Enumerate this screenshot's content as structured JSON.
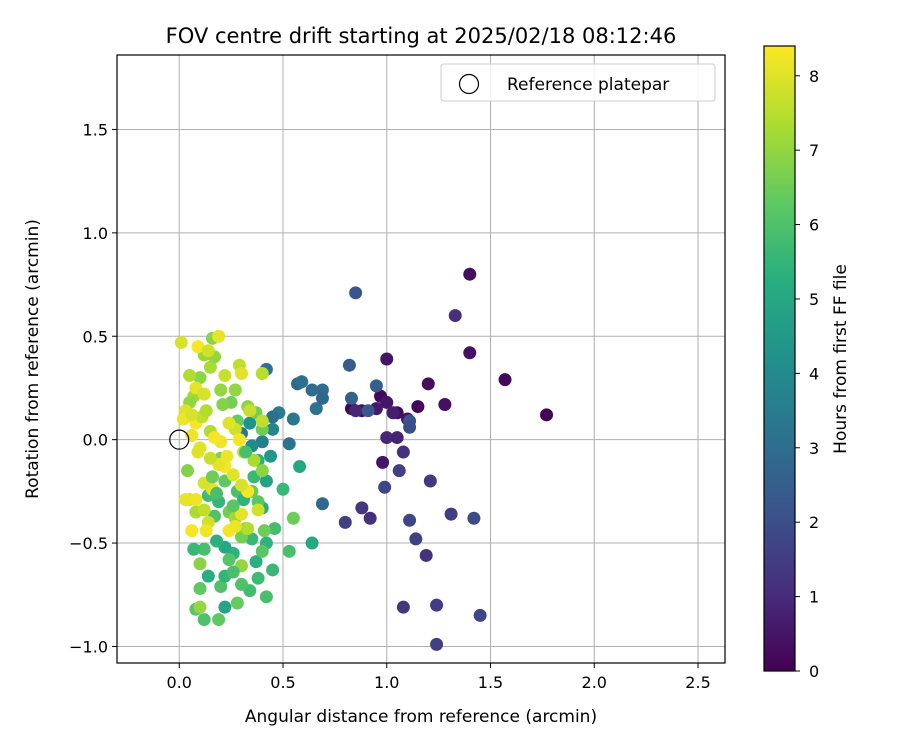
{
  "chart_data": {
    "type": "scatter",
    "title": "FOV centre drift starting at 2025/02/18 08:12:46",
    "xlabel": "Angular distance from reference (arcmin)",
    "ylabel": "Rotation from reference (arcmin)",
    "xlim": [
      -0.3,
      2.63
    ],
    "ylim": [
      -1.08,
      1.86
    ],
    "x_ticks": [
      0.0,
      0.5,
      1.0,
      1.5,
      2.0,
      2.5
    ],
    "x_tick_labels": [
      "0.0",
      "0.5",
      "1.0",
      "1.5",
      "2.0",
      "2.5"
    ],
    "y_ticks": [
      -1.0,
      -0.5,
      0.0,
      0.5,
      1.0,
      1.5
    ],
    "y_tick_labels": [
      "−1.0",
      "−0.5",
      "0.0",
      "0.5",
      "1.0",
      "1.5"
    ],
    "grid": true,
    "legend": {
      "position": "upper right",
      "entries": [
        {
          "label": "Reference platepar",
          "marker": "open-circle"
        }
      ]
    },
    "reference_point": {
      "x": 0.0,
      "y": 0.0
    },
    "colorbar": {
      "label": "Hours from first FF file",
      "colormap": "viridis",
      "range": [
        0,
        8.4
      ],
      "ticks": [
        0,
        1,
        2,
        3,
        4,
        5,
        6,
        7,
        8
      ],
      "tick_labels": [
        "0",
        "1",
        "2",
        "3",
        "4",
        "5",
        "6",
        "7",
        "8"
      ]
    },
    "point_fields": [
      "x",
      "y",
      "hours"
    ],
    "points": [
      [
        1.77,
        0.12,
        0.1
      ],
      [
        1.57,
        0.29,
        0.2
      ],
      [
        1.4,
        0.8,
        0.3
      ],
      [
        1.4,
        0.42,
        0.4
      ],
      [
        1.28,
        0.17,
        0.35
      ],
      [
        1.2,
        0.27,
        0.3
      ],
      [
        1.15,
        0.16,
        0.15
      ],
      [
        1.05,
        0.13,
        0.25
      ],
      [
        1.0,
        0.39,
        0.5
      ],
      [
        0.97,
        0.21,
        0.2
      ],
      [
        0.95,
        0.15,
        0.6
      ],
      [
        0.88,
        0.14,
        0.3
      ],
      [
        0.83,
        0.15,
        0.1
      ],
      [
        0.85,
        0.14,
        0.9
      ],
      [
        1.0,
        0.18,
        0.5
      ],
      [
        1.1,
        0.1,
        0.4
      ],
      [
        1.03,
        0.13,
        0.7
      ],
      [
        1.0,
        0.01,
        0.9
      ],
      [
        1.05,
        0.01,
        0.8
      ],
      [
        1.08,
        -0.06,
        1.2
      ],
      [
        0.98,
        -0.11,
        0.5
      ],
      [
        1.06,
        -0.15,
        1.6
      ],
      [
        0.99,
        -0.23,
        1.8
      ],
      [
        1.21,
        -0.2,
        1.4
      ],
      [
        1.33,
        0.6,
        1.1
      ],
      [
        1.11,
        0.09,
        2.2
      ],
      [
        1.11,
        0.06,
        2.0
      ],
      [
        0.95,
        0.26,
        2.5
      ],
      [
        0.91,
        0.14,
        2.3
      ],
      [
        0.83,
        0.2,
        2.6
      ],
      [
        0.82,
        0.36,
        2.4
      ],
      [
        0.85,
        0.71,
        2.2
      ],
      [
        0.69,
        0.24,
        3.0
      ],
      [
        0.66,
        0.15,
        3.2
      ],
      [
        0.64,
        0.24,
        3.0
      ],
      [
        0.69,
        0.2,
        2.8
      ],
      [
        0.57,
        0.27,
        2.8
      ],
      [
        0.59,
        0.28,
        3.1
      ],
      [
        0.55,
        0.1,
        3.4
      ],
      [
        0.53,
        -0.02,
        3.2
      ],
      [
        0.69,
        -0.31,
        2.8
      ],
      [
        0.8,
        -0.4,
        1.6
      ],
      [
        0.88,
        -0.33,
        1.3
      ],
      [
        0.92,
        -0.38,
        1.1
      ],
      [
        1.11,
        -0.39,
        1.8
      ],
      [
        1.14,
        -0.48,
        1.6
      ],
      [
        1.19,
        -0.56,
        1.2
      ],
      [
        1.31,
        -0.36,
        1.5
      ],
      [
        1.42,
        -0.38,
        1.9
      ],
      [
        1.08,
        -0.81,
        1.3
      ],
      [
        1.24,
        -0.8,
        1.5
      ],
      [
        1.24,
        -0.99,
        1.6
      ],
      [
        1.45,
        -0.85,
        1.8
      ],
      [
        0.42,
        0.34,
        3.2
      ],
      [
        0.48,
        0.13,
        3.5
      ],
      [
        0.45,
        0.11,
        3.1
      ],
      [
        0.45,
        0.05,
        3.8
      ],
      [
        0.4,
        -0.01,
        3.6
      ],
      [
        0.35,
        -0.03,
        4.0
      ],
      [
        0.3,
        0.03,
        3.4
      ],
      [
        0.34,
        0.08,
        4.2
      ],
      [
        0.44,
        -0.08,
        4.4
      ],
      [
        0.58,
        -0.13,
        5.0
      ],
      [
        0.5,
        -0.24,
        5.6
      ],
      [
        0.42,
        -0.2,
        4.8
      ],
      [
        0.4,
        -0.33,
        5.2
      ],
      [
        0.38,
        -0.1,
        5.3
      ],
      [
        0.46,
        -0.43,
        5.8
      ],
      [
        0.42,
        -0.5,
        5.4
      ],
      [
        0.45,
        -0.63,
        5.6
      ],
      [
        0.42,
        -0.76,
        5.9
      ],
      [
        0.38,
        -0.67,
        5.7
      ],
      [
        0.37,
        -0.59,
        5.3
      ],
      [
        0.34,
        -0.73,
        5.8
      ],
      [
        0.3,
        -0.7,
        6.0
      ],
      [
        0.28,
        -0.79,
        6.4
      ],
      [
        0.22,
        -0.81,
        4.9
      ],
      [
        0.2,
        -0.71,
        6.0
      ],
      [
        0.14,
        -0.66,
        5.2
      ],
      [
        0.12,
        -0.53,
        5.9
      ],
      [
        0.08,
        -0.82,
        6.2
      ],
      [
        0.07,
        -0.53,
        5.6
      ],
      [
        0.12,
        -0.87,
        6.0
      ],
      [
        0.19,
        -0.87,
        6.3
      ],
      [
        0.1,
        -0.72,
        6.3
      ],
      [
        0.1,
        -0.6,
        6.9
      ],
      [
        0.1,
        -0.81,
        7.0
      ],
      [
        0.53,
        -0.54,
        5.9
      ],
      [
        0.55,
        -0.38,
        6.5
      ],
      [
        0.64,
        -0.5,
        5.0
      ],
      [
        0.4,
        -0.54,
        6.2
      ],
      [
        0.35,
        -0.48,
        5.6
      ],
      [
        0.3,
        -0.47,
        6.6
      ],
      [
        0.26,
        -0.55,
        5.4
      ],
      [
        0.22,
        -0.52,
        5.0
      ],
      [
        0.24,
        -0.58,
        6.1
      ],
      [
        0.18,
        -0.49,
        5.3
      ],
      [
        0.17,
        -0.37,
        6.0
      ],
      [
        0.14,
        -0.27,
        5.7
      ],
      [
        0.19,
        -0.3,
        5.5
      ],
      [
        0.22,
        -0.2,
        6.3
      ],
      [
        0.24,
        -0.35,
        6.6
      ],
      [
        0.28,
        -0.25,
        5.9
      ],
      [
        0.31,
        -0.29,
        5.4
      ],
      [
        0.35,
        -0.25,
        6.4
      ],
      [
        0.38,
        -0.3,
        6.2
      ],
      [
        0.41,
        -0.44,
        6.5
      ],
      [
        0.32,
        -0.43,
        6.8
      ],
      [
        0.3,
        -0.61,
        7.0
      ],
      [
        0.27,
        -0.38,
        7.2
      ],
      [
        0.36,
        -0.18,
        5.6
      ],
      [
        0.2,
        -0.09,
        6.7
      ],
      [
        0.28,
        0.09,
        6.4
      ],
      [
        0.33,
        0.16,
        6.9
      ],
      [
        0.37,
        0.13,
        6.6
      ],
      [
        0.4,
        0.05,
        6.5
      ],
      [
        0.2,
        0.24,
        7.0
      ],
      [
        0.25,
        0.18,
        6.6
      ],
      [
        0.27,
        0.24,
        7.0
      ],
      [
        0.15,
        0.35,
        7.3
      ],
      [
        0.12,
        0.41,
        7.1
      ],
      [
        0.17,
        0.4,
        7.0
      ],
      [
        0.16,
        0.49,
        6.9
      ],
      [
        0.1,
        0.3,
        6.9
      ],
      [
        0.05,
        0.31,
        7.4
      ],
      [
        0.07,
        0.21,
        7.2
      ],
      [
        0.05,
        0.12,
        7.4
      ],
      [
        0.04,
        -0.15,
        6.8
      ],
      [
        0.05,
        0.18,
        7.0
      ],
      [
        0.08,
        -0.35,
        7.3
      ],
      [
        0.12,
        -0.34,
        7.6
      ],
      [
        0.14,
        -0.4,
        7.8
      ],
      [
        0.13,
        -0.44,
        8.2
      ],
      [
        0.16,
        -0.24,
        8.1
      ],
      [
        0.06,
        -0.44,
        8.3
      ],
      [
        0.05,
        -0.29,
        7.8
      ],
      [
        0.03,
        -0.29,
        8.1
      ],
      [
        0.08,
        -0.29,
        8.2
      ],
      [
        0.24,
        -0.44,
        8.3
      ],
      [
        0.27,
        -0.42,
        8.2
      ],
      [
        0.3,
        -0.36,
        8.1
      ],
      [
        0.38,
        -0.34,
        7.8
      ],
      [
        0.33,
        -0.25,
        8.3
      ],
      [
        0.3,
        -0.22,
        7.9
      ],
      [
        0.26,
        -0.17,
        8.0
      ],
      [
        0.22,
        -0.13,
        8.3
      ],
      [
        0.19,
        -0.12,
        8.1
      ],
      [
        0.15,
        -0.09,
        7.7
      ],
      [
        0.1,
        -0.04,
        8.0
      ],
      [
        0.06,
        0.02,
        8.2
      ],
      [
        0.08,
        0.08,
        8.3
      ],
      [
        0.11,
        0.11,
        7.6
      ],
      [
        0.13,
        0.14,
        7.4
      ],
      [
        0.03,
        0.14,
        8.0
      ],
      [
        0.01,
        0.47,
        7.9
      ],
      [
        0.08,
        0.25,
        8.1
      ],
      [
        0.12,
        0.22,
        7.9
      ],
      [
        0.19,
        0.5,
        8.1
      ],
      [
        0.22,
        0.31,
        7.7
      ],
      [
        0.29,
        0.36,
        7.6
      ],
      [
        0.3,
        0.32,
        8.0
      ],
      [
        0.34,
        0.14,
        7.7
      ],
      [
        0.4,
        0.32,
        7.5
      ],
      [
        0.4,
        0.09,
        7.6
      ],
      [
        0.27,
        0.05,
        7.8
      ],
      [
        0.24,
        0.08,
        8.0
      ],
      [
        0.2,
        -0.01,
        8.2
      ],
      [
        0.29,
        0.0,
        8.3
      ],
      [
        0.31,
        -0.06,
        7.6
      ],
      [
        0.36,
        -0.1,
        7.3
      ],
      [
        0.33,
        -0.43,
        7.4
      ],
      [
        0.4,
        -0.15,
        6.9
      ],
      [
        0.15,
        0.04,
        7.4
      ],
      [
        0.02,
        0.1,
        8.2
      ],
      [
        0.09,
        -0.06,
        8.0
      ],
      [
        0.12,
        -0.21,
        7.9
      ],
      [
        0.06,
        0.12,
        7.9
      ],
      [
        0.09,
        0.45,
        8.3
      ],
      [
        0.17,
        0.01,
        8.3
      ],
      [
        0.23,
        -0.08,
        8.2
      ],
      [
        0.14,
        0.43,
        7.8
      ],
      [
        0.21,
        0.17,
        6.8
      ],
      [
        0.32,
        -0.06,
        5.9
      ],
      [
        0.26,
        -0.32,
        6.2
      ],
      [
        0.18,
        -0.26,
        5.9
      ],
      [
        0.16,
        -0.18,
        6.5
      ],
      [
        0.22,
        -0.66,
        5.5
      ],
      [
        0.26,
        -0.64,
        5.9
      ]
    ]
  }
}
